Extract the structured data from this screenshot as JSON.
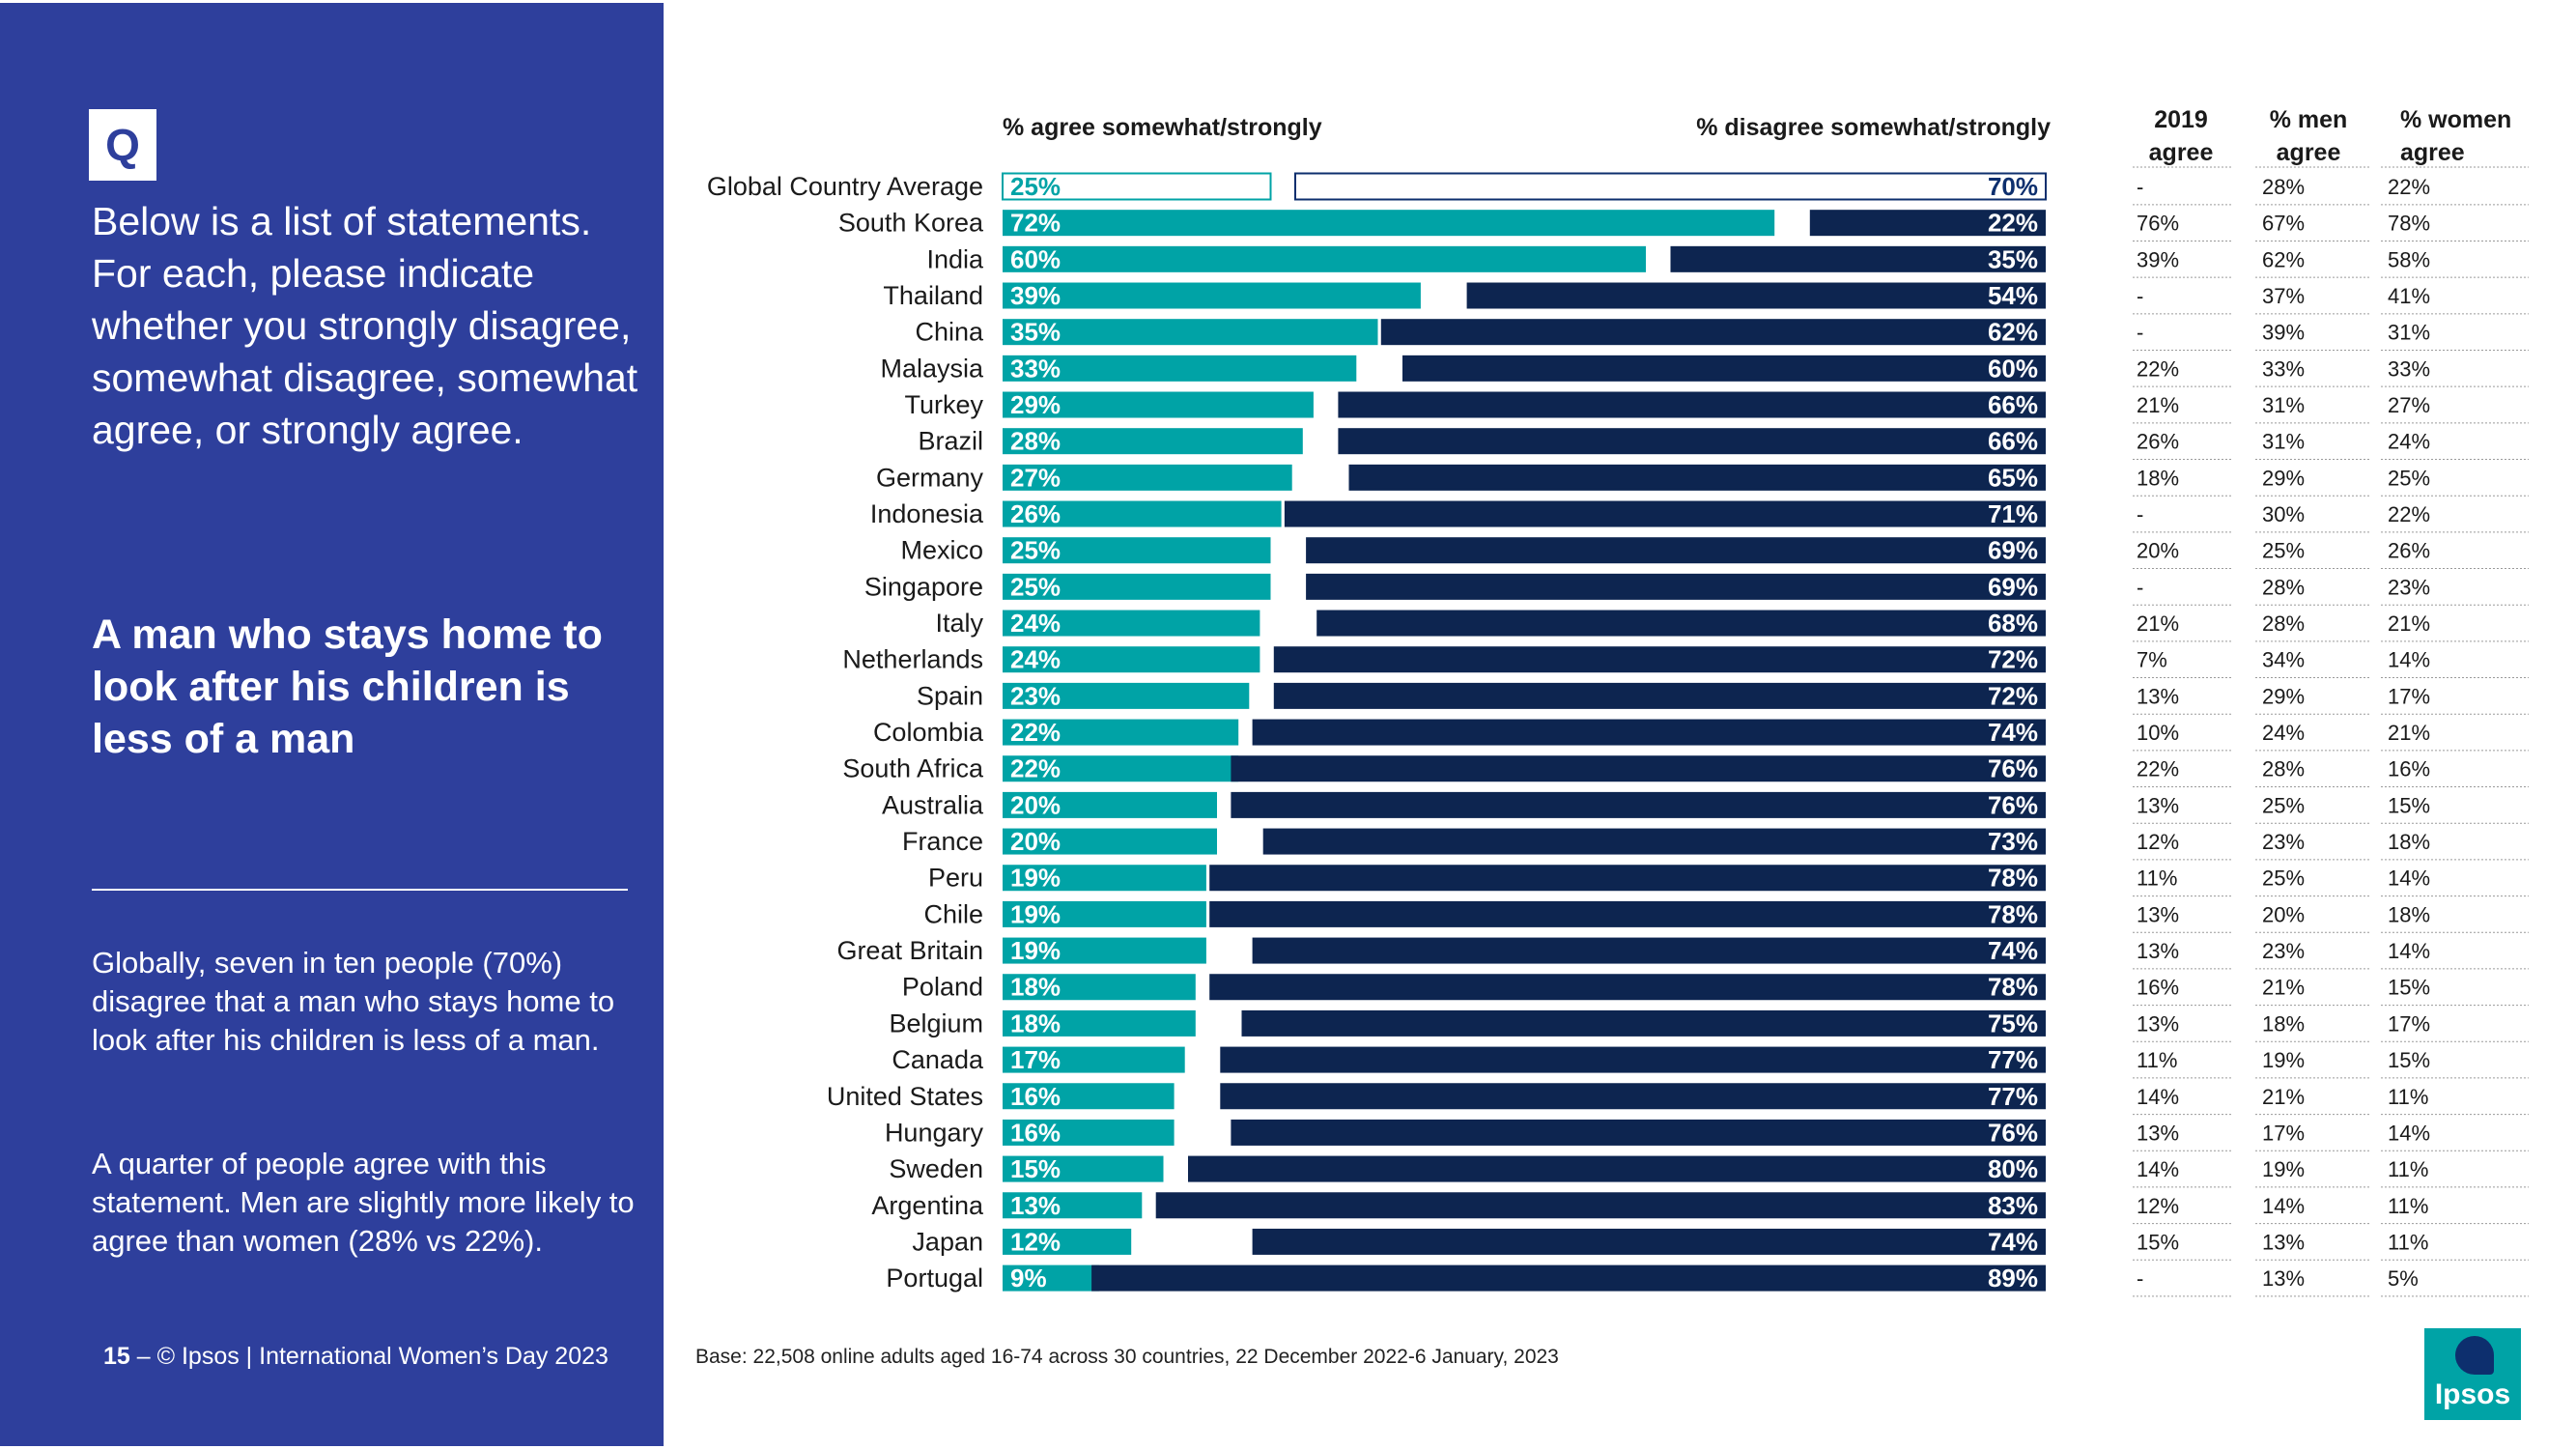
{
  "left": {
    "q_badge": "Q",
    "question": "Below is a list of statements. For each, please indicate whether you strongly disagree, somewhat disagree, somewhat agree, or strongly agree.",
    "statement": "A man who stays home to look after his children is less of a man",
    "summary1": "Globally, seven in ten people (70%) disagree that a man who stays home to look after his children is less of a man.",
    "summary2": "A quarter of people agree with this statement. Men are slightly more likely to agree than women (28% vs 22%).",
    "footer_page": "15",
    "footer_text": "–  © Ipsos | International Women’s Day 2023"
  },
  "base_note": "Base: 22,508 online adults aged 16-74 across 30 countries, 22 December 2022-6 January, 2023",
  "logo_text": "Ipsos",
  "colors": {
    "panel": "#2e3f9c",
    "agree": "#00a3a6",
    "disagree": "#0d2550",
    "avg_border": "#0d2f6e"
  },
  "chart_data": {
    "type": "bar",
    "headers": {
      "agree": "% agree somewhat/strongly",
      "disagree": "% disagree somewhat/strongly",
      "col2019": [
        "2019",
        "agree"
      ],
      "colmen": [
        "% men",
        "agree"
      ],
      "colwomen": [
        "% women",
        "agree"
      ]
    },
    "rows": [
      {
        "country": "Global Country Average",
        "agree": 25,
        "disagree": 70,
        "y2019": "-",
        "men": "28%",
        "women": "22%",
        "average": true
      },
      {
        "country": "South Korea",
        "agree": 72,
        "disagree": 22,
        "y2019": "76%",
        "men": "67%",
        "women": "78%"
      },
      {
        "country": "India",
        "agree": 60,
        "disagree": 35,
        "y2019": "39%",
        "men": "62%",
        "women": "58%"
      },
      {
        "country": "Thailand",
        "agree": 39,
        "disagree": 54,
        "y2019": "-",
        "men": "37%",
        "women": "41%"
      },
      {
        "country": "China",
        "agree": 35,
        "disagree": 62,
        "y2019": "-",
        "men": "39%",
        "women": "31%"
      },
      {
        "country": "Malaysia",
        "agree": 33,
        "disagree": 60,
        "y2019": "22%",
        "men": "33%",
        "women": "33%"
      },
      {
        "country": "Turkey",
        "agree": 29,
        "disagree": 66,
        "y2019": "21%",
        "men": "31%",
        "women": "27%"
      },
      {
        "country": "Brazil",
        "agree": 28,
        "disagree": 66,
        "y2019": "26%",
        "men": "31%",
        "women": "24%"
      },
      {
        "country": "Germany",
        "agree": 27,
        "disagree": 65,
        "y2019": "18%",
        "men": "29%",
        "women": "25%"
      },
      {
        "country": "Indonesia",
        "agree": 26,
        "disagree": 71,
        "y2019": "-",
        "men": "30%",
        "women": "22%"
      },
      {
        "country": "Mexico",
        "agree": 25,
        "disagree": 69,
        "y2019": "20%",
        "men": "25%",
        "women": "26%"
      },
      {
        "country": "Singapore",
        "agree": 25,
        "disagree": 69,
        "y2019": "-",
        "men": "28%",
        "women": "23%"
      },
      {
        "country": "Italy",
        "agree": 24,
        "disagree": 68,
        "y2019": "21%",
        "men": "28%",
        "women": "21%"
      },
      {
        "country": "Netherlands",
        "agree": 24,
        "disagree": 72,
        "y2019": "7%",
        "men": "34%",
        "women": "14%"
      },
      {
        "country": "Spain",
        "agree": 23,
        "disagree": 72,
        "y2019": "13%",
        "men": "29%",
        "women": "17%"
      },
      {
        "country": "Colombia",
        "agree": 22,
        "disagree": 74,
        "y2019": "10%",
        "men": "24%",
        "women": "21%"
      },
      {
        "country": "South Africa",
        "agree": 22,
        "disagree": 76,
        "y2019": "22%",
        "men": "28%",
        "women": "16%"
      },
      {
        "country": "Australia",
        "agree": 20,
        "disagree": 76,
        "y2019": "13%",
        "men": "25%",
        "women": "15%"
      },
      {
        "country": "France",
        "agree": 20,
        "disagree": 73,
        "y2019": "12%",
        "men": "23%",
        "women": "18%"
      },
      {
        "country": "Peru",
        "agree": 19,
        "disagree": 78,
        "y2019": "11%",
        "men": "25%",
        "women": "14%"
      },
      {
        "country": "Chile",
        "agree": 19,
        "disagree": 78,
        "y2019": "13%",
        "men": "20%",
        "women": "18%"
      },
      {
        "country": "Great Britain",
        "agree": 19,
        "disagree": 74,
        "y2019": "13%",
        "men": "23%",
        "women": "14%"
      },
      {
        "country": "Poland",
        "agree": 18,
        "disagree": 78,
        "y2019": "16%",
        "men": "21%",
        "women": "15%"
      },
      {
        "country": "Belgium",
        "agree": 18,
        "disagree": 75,
        "y2019": "13%",
        "men": "18%",
        "women": "17%"
      },
      {
        "country": "Canada",
        "agree": 17,
        "disagree": 77,
        "y2019": "11%",
        "men": "19%",
        "women": "15%"
      },
      {
        "country": "United States",
        "agree": 16,
        "disagree": 77,
        "y2019": "14%",
        "men": "21%",
        "women": "11%"
      },
      {
        "country": "Hungary",
        "agree": 16,
        "disagree": 76,
        "y2019": "13%",
        "men": "17%",
        "women": "14%"
      },
      {
        "country": "Sweden",
        "agree": 15,
        "disagree": 80,
        "y2019": "14%",
        "men": "19%",
        "women": "11%"
      },
      {
        "country": "Argentina",
        "agree": 13,
        "disagree": 83,
        "y2019": "12%",
        "men": "14%",
        "women": "11%"
      },
      {
        "country": "Japan",
        "agree": 12,
        "disagree": 74,
        "y2019": "15%",
        "men": "13%",
        "women": "11%"
      },
      {
        "country": "Portugal",
        "agree": 9,
        "disagree": 89,
        "y2019": "-",
        "men": "13%",
        "women": "5%"
      }
    ]
  }
}
